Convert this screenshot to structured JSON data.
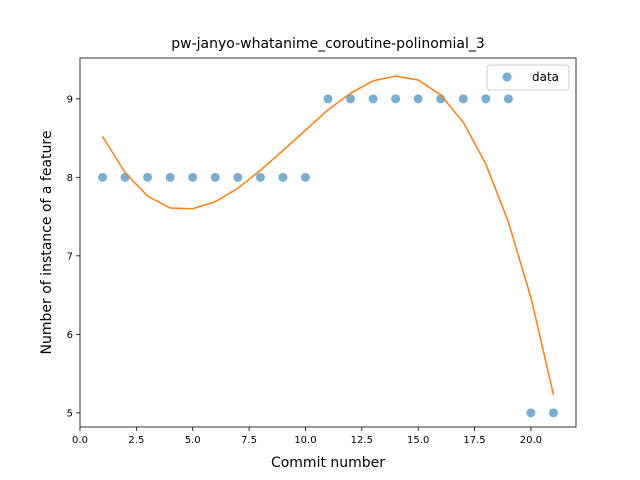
{
  "chart_data": {
    "type": "scatter",
    "title": "pw-janyo-whatanime_coroutine-polinomial_3",
    "xlabel": "Commit number",
    "ylabel": "Number of instance of a feature",
    "xlim": [
      0,
      22
    ],
    "ylim": [
      4.82,
      9.52
    ],
    "xticks": [
      0,
      2.5,
      5,
      7.5,
      10,
      12.5,
      15,
      17.5,
      20
    ],
    "xtick_labels": [
      "0.0",
      "2.5",
      "5.0",
      "7.5",
      "10.0",
      "12.5",
      "15.0",
      "17.5",
      "20.0"
    ],
    "yticks": [
      5,
      6,
      7,
      8,
      9
    ],
    "ytick_labels": [
      "5",
      "6",
      "7",
      "8",
      "9"
    ],
    "grid": false,
    "legend": {
      "position": "top-right",
      "entries": [
        "data"
      ]
    },
    "series": [
      {
        "name": "data",
        "kind": "scatter",
        "color": "#1f77b4",
        "x": [
          1,
          2,
          3,
          4,
          5,
          6,
          7,
          8,
          9,
          10,
          11,
          12,
          13,
          14,
          15,
          16,
          17,
          18,
          19,
          20,
          21
        ],
        "y": [
          8,
          8,
          8,
          8,
          8,
          8,
          8,
          8,
          8,
          8,
          9,
          9,
          9,
          9,
          9,
          9,
          9,
          9,
          9,
          5,
          5
        ]
      },
      {
        "kind": "line",
        "color": "#ff7f0e",
        "x": [
          1,
          2,
          3,
          4,
          5,
          6,
          7,
          8,
          9,
          10,
          11,
          12,
          13,
          14,
          15,
          16,
          17,
          18,
          19,
          20,
          21
        ],
        "y": [
          8.52,
          8.06,
          7.76,
          7.61,
          7.6,
          7.69,
          7.86,
          8.09,
          8.34,
          8.6,
          8.86,
          9.07,
          9.23,
          9.29,
          9.24,
          9.05,
          8.7,
          8.17,
          7.43,
          6.47,
          5.23
        ]
      }
    ]
  }
}
